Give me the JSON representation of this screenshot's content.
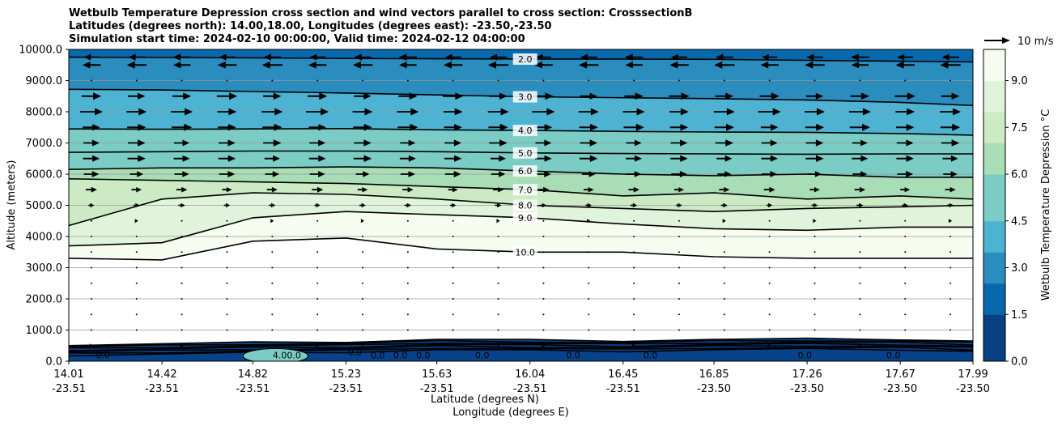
{
  "chart_data": {
    "type": "contour",
    "title_lines": [
      "Wetbulb Temperature Depression cross section and wind vectors parallel to cross section: CrosssectionB",
      "Latitudes (degrees north): 14.00,18.00, Longitudes (degrees east): -23.50,-23.50",
      "Simulation start time: 2024-02-10 00:00:00, Valid time: 2024-02-12 04:00:00"
    ],
    "ylabel": "Altitude (meters)",
    "xlabel": "Latitude (degrees N)",
    "xlabel2": "Longitude (degrees E)",
    "ylim": [
      0,
      10000
    ],
    "xlim": [
      14.01,
      17.99
    ],
    "y_ticks": [
      {
        "value": 0,
        "label": "0.0"
      },
      {
        "value": 1000,
        "label": "1000.0"
      },
      {
        "value": 2000,
        "label": "2000.0"
      },
      {
        "value": 3000,
        "label": "3000.0"
      },
      {
        "value": 4000,
        "label": "4000.0"
      },
      {
        "value": 5000,
        "label": "5000.0"
      },
      {
        "value": 6000,
        "label": "6000.0"
      },
      {
        "value": 7000,
        "label": "7000.0"
      },
      {
        "value": 8000,
        "label": "8000.0"
      },
      {
        "value": 9000,
        "label": "9000.0"
      },
      {
        "value": 10000,
        "label": "10000.0"
      }
    ],
    "x_ticks": [
      {
        "value": 14.01,
        "lat": "14.01",
        "lon": "-23.51"
      },
      {
        "value": 14.42,
        "lat": "14.42",
        "lon": "-23.51"
      },
      {
        "value": 14.82,
        "lat": "14.82",
        "lon": "-23.51"
      },
      {
        "value": 15.23,
        "lat": "15.23",
        "lon": "-23.51"
      },
      {
        "value": 15.63,
        "lat": "15.63",
        "lon": "-23.51"
      },
      {
        "value": 16.04,
        "lat": "16.04",
        "lon": "-23.51"
      },
      {
        "value": 16.45,
        "lat": "16.45",
        "lon": "-23.51"
      },
      {
        "value": 16.85,
        "lat": "16.85",
        "lon": "-23.50"
      },
      {
        "value": 17.26,
        "lat": "17.26",
        "lon": "-23.50"
      },
      {
        "value": 17.67,
        "lat": "17.67",
        "lon": "-23.50"
      },
      {
        "value": 17.99,
        "lat": "17.99",
        "lon": "-23.50"
      }
    ],
    "colorbar": {
      "label": "Wetbulb Temperature Depression °C",
      "range": [
        0,
        10
      ],
      "ticks": [
        {
          "value": 0,
          "label": "0.0"
        },
        {
          "value": 1.5,
          "label": "1.5"
        },
        {
          "value": 3,
          "label": "3.0"
        },
        {
          "value": 4.5,
          "label": "4.5"
        },
        {
          "value": 6,
          "label": "6.0"
        },
        {
          "value": 7.5,
          "label": "7.5"
        },
        {
          "value": 9,
          "label": "9.0"
        }
      ],
      "colors": [
        "#084081",
        "#0868ac",
        "#2b8cbe",
        "#4eb3d3",
        "#7bccc4",
        "#a8ddb5",
        "#ccebc5",
        "#e0f3db",
        "#f7fcf0"
      ]
    },
    "quiver_key": {
      "label": "10 m/s",
      "speed": 10
    },
    "contour_lines": [
      {
        "value": 2.0,
        "label": "2.0",
        "heights": [
          9750,
          9740,
          9730,
          9710,
          9700,
          9690,
          9690,
          9680,
          9650,
          9620,
          9600
        ]
      },
      {
        "value": 3.0,
        "label": "3.0",
        "heights": [
          8720,
          8700,
          8650,
          8600,
          8540,
          8480,
          8450,
          8420,
          8380,
          8300,
          8200
        ]
      },
      {
        "value": 4.0,
        "label": "4.0",
        "heights": [
          7450,
          7440,
          7450,
          7460,
          7420,
          7400,
          7370,
          7350,
          7340,
          7300,
          7250
        ]
      },
      {
        "value": 5.0,
        "label": "5.0",
        "heights": [
          6700,
          6720,
          6740,
          6740,
          6720,
          6680,
          6660,
          6650,
          6640,
          6650,
          6650
        ]
      },
      {
        "value": 6.0,
        "label": "6.0",
        "heights": [
          6150,
          6200,
          6200,
          6230,
          6200,
          6100,
          6000,
          5950,
          6000,
          5900,
          5900
        ]
      },
      {
        "value": 7.0,
        "label": "7.0",
        "heights": [
          5850,
          5800,
          5750,
          5700,
          5600,
          5500,
          5300,
          5400,
          5200,
          5300,
          5200
        ]
      },
      {
        "value": 8.0,
        "label": "8.0",
        "heights": [
          4350,
          5200,
          5400,
          5350,
          5200,
          5000,
          4900,
          4800,
          4900,
          4950,
          5000
        ]
      },
      {
        "value": 9.0,
        "label": "9.0",
        "heights": [
          3700,
          3800,
          4600,
          4800,
          4700,
          4600,
          4400,
          4250,
          4200,
          4300,
          4300
        ]
      },
      {
        "value": 10.0,
        "label": "10.0",
        "heights": [
          3300,
          3250,
          3850,
          3950,
          3600,
          3500,
          3500,
          3350,
          3300,
          3300,
          3300
        ]
      }
    ],
    "low_level_labels": [
      {
        "x": 14.16,
        "y": 200,
        "label": "0.0"
      },
      {
        "x": 14.97,
        "y": 200,
        "label": "4.00.0"
      },
      {
        "x": 15.27,
        "y": 300,
        "label": "0.0"
      },
      {
        "x": 15.37,
        "y": 200,
        "label": "0.0"
      },
      {
        "x": 15.47,
        "y": 200,
        "label": "0.0"
      },
      {
        "x": 15.57,
        "y": 200,
        "label": "0.0"
      },
      {
        "x": 15.83,
        "y": 200,
        "label": "0.0"
      },
      {
        "x": 16.23,
        "y": 200,
        "label": "0.0"
      },
      {
        "x": 16.57,
        "y": 200,
        "label": "0.0"
      },
      {
        "x": 17.25,
        "y": 200,
        "label": "0.0"
      },
      {
        "x": 17.64,
        "y": 200,
        "label": "0.0"
      }
    ],
    "wind_rows": [
      {
        "y": 9750,
        "u": -8
      },
      {
        "y": 9500,
        "u": -9
      },
      {
        "y": 9000,
        "u": 0.5
      },
      {
        "y": 8500,
        "u": 9
      },
      {
        "y": 8000,
        "u": 10
      },
      {
        "y": 7500,
        "u": 9
      },
      {
        "y": 7000,
        "u": 8
      },
      {
        "y": 6500,
        "u": 8
      },
      {
        "y": 6000,
        "u": 7
      },
      {
        "y": 5500,
        "u": 5
      },
      {
        "y": 5000,
        "u": 3
      },
      {
        "y": 4500,
        "u": 1.5
      },
      {
        "y": 4000,
        "u": 0.5
      },
      {
        "y": 3500,
        "u": 0.6
      },
      {
        "y": 3000,
        "u": 0.8
      },
      {
        "y": 2500,
        "u": 1
      },
      {
        "y": 2000,
        "u": 1
      },
      {
        "y": 1500,
        "u": 1
      },
      {
        "y": 1000,
        "u": 1.2
      },
      {
        "y": 500,
        "u": 1.5
      }
    ]
  }
}
